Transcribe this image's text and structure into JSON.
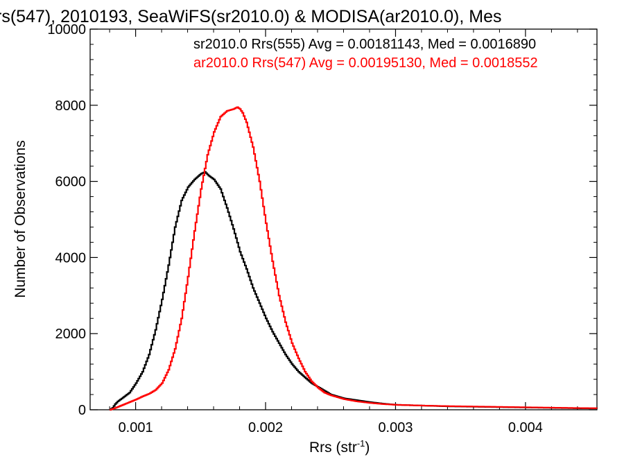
{
  "chart_data": {
    "type": "line",
    "title": "rs(547), 2010193, SeaWiFS(sr2010.0) & MODISA(ar2010.0), Mes",
    "xlabel": "Rrs (str",
    "xlabel_sup": "-1",
    "xlabel_close": ")",
    "ylabel": "Number of Observations",
    "xlim": [
      0.00065,
      0.00455
    ],
    "ylim": [
      0,
      10000
    ],
    "x_ticks": [
      0.001,
      0.002,
      0.003,
      0.004
    ],
    "x_tick_labels": [
      "0.001",
      "0.002",
      "0.003",
      "0.004"
    ],
    "y_ticks": [
      0,
      2000,
      4000,
      6000,
      8000,
      10000
    ],
    "y_tick_labels": [
      "0",
      "2000",
      "4000",
      "6000",
      "8000",
      "10000"
    ],
    "grid": false,
    "legend_position": "top-right",
    "legend_text": [
      "sr2010.0 Rrs(555) Avg = 0.00181143, Med = 0.0016890",
      "ar2010.0 Rrs(547) Avg = 0.00195130, Med = 0.0018552"
    ],
    "series": [
      {
        "color": "#000000",
        "x": [
          0.0008,
          0.00082,
          0.00084,
          0.00086,
          0.00088,
          0.0009,
          0.00095,
          0.001,
          0.00105,
          0.0011,
          0.00115,
          0.0012,
          0.00125,
          0.0013,
          0.00135,
          0.0014,
          0.00145,
          0.0015,
          0.00153,
          0.00156,
          0.0016,
          0.00165,
          0.0017,
          0.00175,
          0.0018,
          0.00185,
          0.0019,
          0.00195,
          0.002,
          0.00205,
          0.0021,
          0.00215,
          0.0022,
          0.00225,
          0.0023,
          0.00235,
          0.0024,
          0.00245,
          0.0025,
          0.0026,
          0.0027,
          0.0028,
          0.0029,
          0.003,
          0.0032,
          0.0034,
          0.0036,
          0.0038,
          0.004,
          0.0042,
          0.0044,
          0.00455
        ],
        "y": [
          0,
          50,
          150,
          220,
          270,
          320,
          450,
          700,
          1000,
          1450,
          2100,
          2900,
          3800,
          4800,
          5500,
          5850,
          6050,
          6200,
          6250,
          6150,
          6050,
          5800,
          5300,
          4750,
          4150,
          3700,
          3200,
          2800,
          2400,
          2050,
          1750,
          1450,
          1200,
          1000,
          850,
          700,
          600,
          500,
          400,
          300,
          250,
          200,
          160,
          130,
          110,
          90,
          80,
          70,
          60,
          50,
          40,
          35
        ]
      },
      {
        "color": "#ff0000",
        "x": [
          0.0008,
          0.00082,
          0.00085,
          0.0009,
          0.00095,
          0.001,
          0.00105,
          0.0011,
          0.00115,
          0.0012,
          0.00125,
          0.0013,
          0.00135,
          0.0014,
          0.00145,
          0.0015,
          0.00155,
          0.0016,
          0.00165,
          0.0017,
          0.00175,
          0.00178,
          0.0018,
          0.00182,
          0.00185,
          0.0019,
          0.00195,
          0.002,
          0.00205,
          0.0021,
          0.00215,
          0.0022,
          0.00225,
          0.0023,
          0.00235,
          0.0024,
          0.00245,
          0.0025,
          0.0026,
          0.0027,
          0.0028,
          0.0029,
          0.003,
          0.0032,
          0.0034,
          0.0036,
          0.0038,
          0.004,
          0.0042,
          0.0044,
          0.00455
        ],
        "y": [
          0,
          20,
          60,
          130,
          200,
          270,
          350,
          420,
          520,
          700,
          1050,
          1600,
          2400,
          3500,
          4700,
          5800,
          6700,
          7300,
          7700,
          7850,
          7900,
          7950,
          7900,
          7800,
          7550,
          6900,
          6000,
          4900,
          3900,
          3000,
          2300,
          1750,
          1350,
          1000,
          750,
          580,
          450,
          380,
          280,
          220,
          180,
          150,
          130,
          110,
          95,
          85,
          75,
          65,
          55,
          45,
          40
        ]
      }
    ]
  }
}
